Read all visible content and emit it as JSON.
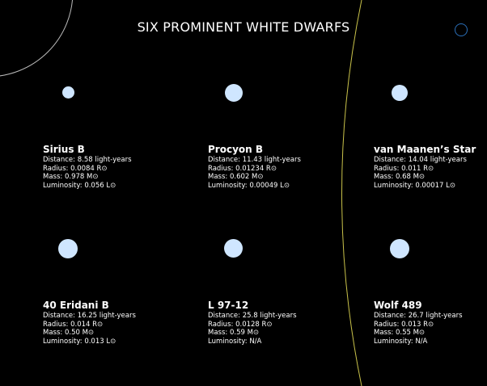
{
  "title": "SIX PROMINENT WHITE DWARFS",
  "colors": {
    "background": "#000000",
    "dot": "#cfe6ff",
    "arc_left": "#bbbbbb",
    "arc_right": "#c9c24a",
    "ring": "#2b6fb8"
  },
  "labels": {
    "distance": "Distance: ",
    "radius": "Radius: ",
    "mass": "Mass: ",
    "luminosity": "Luminosity: "
  },
  "stars": [
    {
      "name": "Sirius B",
      "distance": "8.58 light-years",
      "radius": "0.0084 R⊙",
      "mass": "0.978 M⊙",
      "luminosity": "0.056 L⊙"
    },
    {
      "name": "Procyon B",
      "distance": "11.43 light-years",
      "radius": "0.01234 R⊙",
      "mass": "0.602 M⊙",
      "luminosity": "0.00049 L⊙"
    },
    {
      "name": "van Maanen’s Star",
      "distance": "14.04 light-years",
      "radius": "0.011 R⊙",
      "mass": "0.68 M⊙",
      "luminosity": " 0.00017 L⊙"
    },
    {
      "name": "40 Eridani B",
      "distance": "16.25 light-years",
      "radius": "0.014 R⊙",
      "mass": "0.50 M⊙",
      "luminosity": "0.013 L⊙"
    },
    {
      "name": "L 97-12",
      "distance": "25.8 light-years",
      "radius": "0.0128 R⊙",
      "mass": "0.59 M⊙",
      "luminosity": "N/A"
    },
    {
      "name": "Wolf 489",
      "distance": "26.7 light-years",
      "radius": "0.013 R⊙",
      "mass": "0.55 M⊙",
      "luminosity": "N/A"
    }
  ]
}
